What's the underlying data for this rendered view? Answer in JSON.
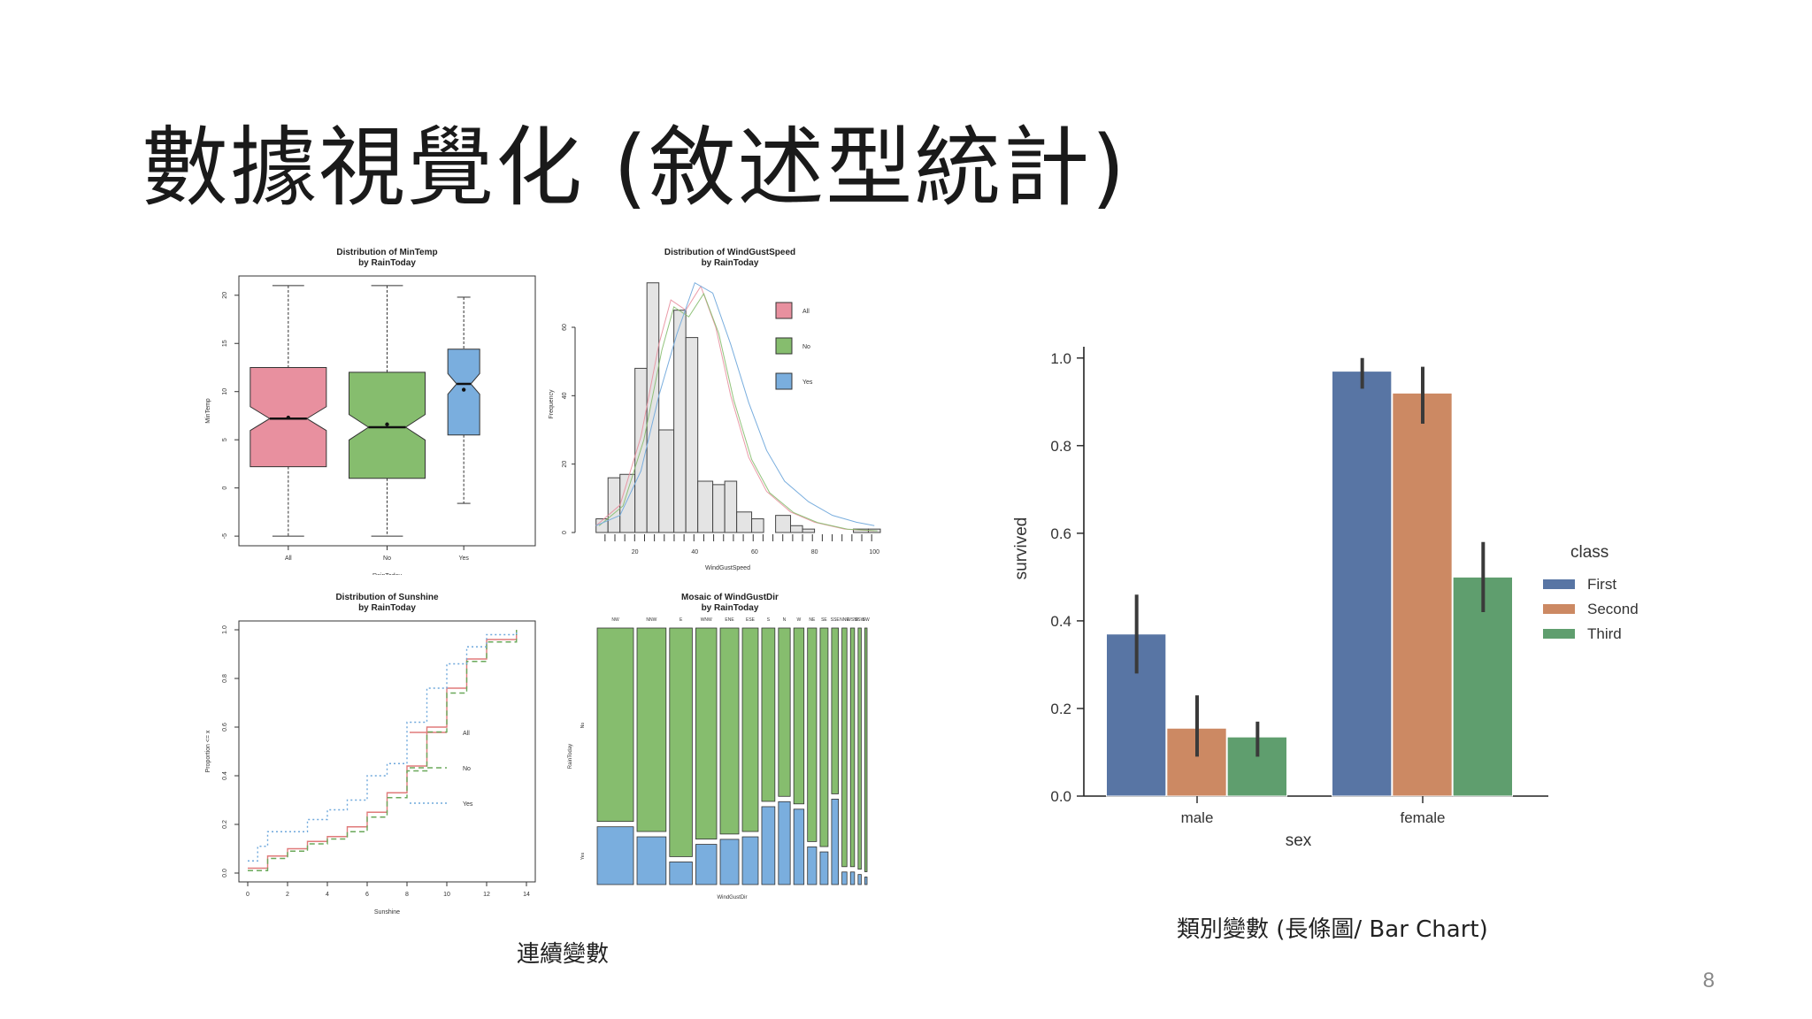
{
  "slide": {
    "title": "數據視覺化 (敘述型統計)",
    "caption_left": "連續變數",
    "caption_right": "類別變數 (長條圖/ Bar Chart)",
    "page_number": "8"
  },
  "chart_data": [
    {
      "type": "box",
      "title": "Distribution of MinTemp\nby RainToday",
      "title_lines": [
        "Distribution of MinTemp",
        "by RainToday"
      ],
      "xlabel": "RainToday",
      "ylabel": "MinTemp",
      "categories": [
        "All",
        "No",
        "Yes"
      ],
      "ylim": [
        -6,
        22
      ],
      "yticks": [
        "-5",
        "0",
        "5",
        "10",
        "15",
        "20"
      ],
      "boxes": [
        {
          "name": "All",
          "min": -5,
          "q1": 2.2,
          "median": 7.2,
          "q3": 12.5,
          "max": 21,
          "mean": 7.3,
          "color": "#e8909f"
        },
        {
          "name": "No",
          "min": -5,
          "q1": 1,
          "median": 6.3,
          "q3": 12,
          "max": 21,
          "mean": 6.6,
          "color": "#86bd6e"
        },
        {
          "name": "Yes",
          "min": -1.6,
          "q1": 5.5,
          "median": 10.8,
          "q3": 14.4,
          "max": 19.8,
          "mean": 10.2,
          "color": "#7aaede"
        }
      ]
    },
    {
      "type": "histogram",
      "title_lines": [
        "Distribution of WindGustSpeed",
        "by RainToday"
      ],
      "xlabel": "WindGustSpeed",
      "ylabel": "Frequency",
      "xticks": [
        "20",
        "40",
        "60",
        "80",
        "100"
      ],
      "yticks": [
        "0",
        "20",
        "40",
        "60"
      ],
      "bin_edges": [
        7,
        11,
        15,
        20,
        24,
        28,
        33,
        37,
        41,
        46,
        50,
        54,
        59,
        63,
        67,
        72,
        76,
        80,
        85,
        89,
        93,
        98,
        102
      ],
      "values": [
        4,
        16,
        17,
        48,
        73,
        30,
        65,
        57,
        15,
        14,
        15,
        6,
        4,
        0,
        5,
        2,
        1,
        0,
        0,
        0,
        1,
        1
      ],
      "legend": [
        {
          "name": "All",
          "color": "#e8909f"
        },
        {
          "name": "No",
          "color": "#86bd6e"
        },
        {
          "name": "Yes",
          "color": "#7aaede"
        }
      ]
    },
    {
      "type": "line",
      "title_lines": [
        "Distribution of Sunshine",
        "by RainToday"
      ],
      "xlabel": "Sunshine",
      "ylabel": "Proportion <= x",
      "xticks": [
        "0",
        "2",
        "4",
        "6",
        "8",
        "10",
        "12",
        "14"
      ],
      "yticks": [
        "0.0",
        "0.2",
        "0.4",
        "0.6",
        "0.8",
        "1.0"
      ],
      "series": [
        {
          "name": "All",
          "color": "#e07a7a",
          "dash": "",
          "x": [
            0,
            1,
            2,
            3,
            4,
            5,
            6,
            7,
            8,
            9,
            10,
            11,
            12,
            13.5
          ],
          "y": [
            0.02,
            0.07,
            0.1,
            0.13,
            0.15,
            0.19,
            0.25,
            0.33,
            0.44,
            0.6,
            0.76,
            0.88,
            0.96,
            1.0
          ]
        },
        {
          "name": "No",
          "color": "#6aa85a",
          "dash": "6,4",
          "x": [
            0,
            1,
            2,
            3,
            4,
            5,
            6,
            7,
            8,
            9,
            10,
            11,
            12,
            13.5
          ],
          "y": [
            0.01,
            0.06,
            0.09,
            0.12,
            0.14,
            0.17,
            0.23,
            0.31,
            0.42,
            0.58,
            0.74,
            0.87,
            0.95,
            1.0
          ]
        },
        {
          "name": "Yes",
          "color": "#6fa8dc",
          "dash": "2,3",
          "x": [
            0,
            0.5,
            1,
            2,
            3,
            4,
            5,
            6,
            7,
            8,
            9,
            10,
            11,
            12,
            13.5
          ],
          "y": [
            0.05,
            0.11,
            0.17,
            0.17,
            0.22,
            0.26,
            0.3,
            0.4,
            0.45,
            0.62,
            0.76,
            0.86,
            0.93,
            0.98,
            1.0
          ]
        }
      ]
    },
    {
      "type": "mosaic",
      "title_lines": [
        "Mosaic of WindGustDir",
        "by RainToday"
      ],
      "xlabel": "WindGustDir",
      "ylabel": "RainToday",
      "row_labels": [
        "No",
        "Yes"
      ],
      "categories": [
        "NW",
        "NNW",
        "E",
        "WNW",
        "ENE",
        "ESE",
        "S",
        "N",
        "W",
        "NE",
        "SE",
        "SSE",
        "NNE",
        "WSW",
        "SSW",
        "SW"
      ],
      "widths": [
        0.16,
        0.128,
        0.1,
        0.092,
        0.082,
        0.07,
        0.058,
        0.052,
        0.045,
        0.04,
        0.035,
        0.03,
        0.022,
        0.018,
        0.014,
        0.01
      ],
      "no_share": [
        0.77,
        0.81,
        0.91,
        0.84,
        0.82,
        0.81,
        0.69,
        0.67,
        0.7,
        0.85,
        0.87,
        0.66,
        0.95,
        0.95,
        0.96,
        0.97
      ],
      "colors": {
        "No": "#86bd6e",
        "Yes": "#7aaede"
      }
    },
    {
      "type": "bar",
      "xlabel": "sex",
      "ylabel": "survived",
      "categories": [
        "male",
        "female"
      ],
      "ylim": [
        0,
        1.05
      ],
      "yticks": [
        "0.0",
        "0.2",
        "0.4",
        "0.6",
        "0.8",
        "1.0"
      ],
      "legend_title": "class",
      "series": [
        {
          "name": "First",
          "color": "#5875a4",
          "values": [
            0.37,
            0.97
          ],
          "err_low": [
            0.28,
            0.93
          ],
          "err_high": [
            0.46,
            1.0
          ]
        },
        {
          "name": "Second",
          "color": "#cc8963",
          "values": [
            0.155,
            0.92
          ],
          "err_low": [
            0.09,
            0.85
          ],
          "err_high": [
            0.23,
            0.98
          ]
        },
        {
          "name": "Third",
          "color": "#5f9e6e",
          "values": [
            0.135,
            0.5
          ],
          "err_low": [
            0.09,
            0.42
          ],
          "err_high": [
            0.17,
            0.58
          ]
        }
      ]
    }
  ]
}
